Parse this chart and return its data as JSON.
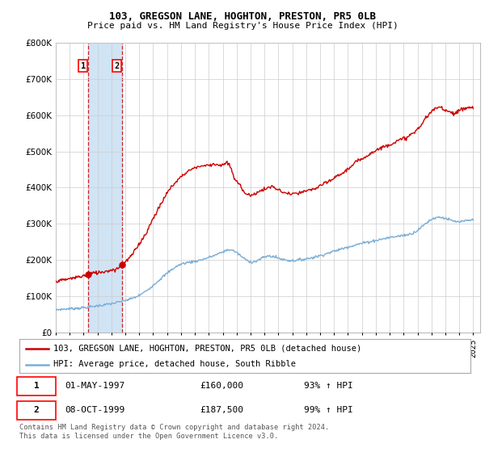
{
  "title": "103, GREGSON LANE, HOGHTON, PRESTON, PR5 0LB",
  "subtitle": "Price paid vs. HM Land Registry's House Price Index (HPI)",
  "ylim": [
    0,
    800000
  ],
  "xlim_start": 1995.0,
  "xlim_end": 2025.5,
  "sale1": {
    "date_num": 1997.33,
    "price": 160000,
    "label": "1",
    "date_str": "01-MAY-1997",
    "pct": "93% ↑ HPI"
  },
  "sale2": {
    "date_num": 1999.77,
    "price": 187500,
    "label": "2",
    "date_str": "08-OCT-1999",
    "pct": "99% ↑ HPI"
  },
  "vline_color": "#cc0000",
  "hpi_color": "#7aaed6",
  "property_color": "#cc0000",
  "shade_color": "#d0e4f5",
  "legend_property": "103, GREGSON LANE, HOGHTON, PRESTON, PR5 0LB (detached house)",
  "legend_hpi": "HPI: Average price, detached house, South Ribble",
  "footer": "Contains HM Land Registry data © Crown copyright and database right 2024.\nThis data is licensed under the Open Government Licence v3.0.",
  "background_color": "#ffffff",
  "grid_color": "#cccccc",
  "hpi_keypoints": [
    [
      1995.0,
      62000
    ],
    [
      1996.0,
      65000
    ],
    [
      1997.0,
      68000
    ],
    [
      1998.0,
      73000
    ],
    [
      1999.0,
      79000
    ],
    [
      2000.0,
      88000
    ],
    [
      2001.0,
      102000
    ],
    [
      2002.0,
      130000
    ],
    [
      2003.0,
      163000
    ],
    [
      2004.0,
      188000
    ],
    [
      2005.0,
      196000
    ],
    [
      2006.0,
      207000
    ],
    [
      2007.0,
      222000
    ],
    [
      2007.5,
      228000
    ],
    [
      2008.0,
      220000
    ],
    [
      2008.5,
      205000
    ],
    [
      2009.0,
      195000
    ],
    [
      2009.5,
      198000
    ],
    [
      2010.0,
      208000
    ],
    [
      2010.5,
      210000
    ],
    [
      2011.0,
      205000
    ],
    [
      2011.5,
      200000
    ],
    [
      2012.0,
      198000
    ],
    [
      2012.5,
      200000
    ],
    [
      2013.0,
      203000
    ],
    [
      2013.5,
      207000
    ],
    [
      2014.0,
      212000
    ],
    [
      2014.5,
      218000
    ],
    [
      2015.0,
      224000
    ],
    [
      2015.5,
      230000
    ],
    [
      2016.0,
      236000
    ],
    [
      2016.5,
      241000
    ],
    [
      2017.0,
      246000
    ],
    [
      2017.5,
      250000
    ],
    [
      2018.0,
      254000
    ],
    [
      2018.5,
      258000
    ],
    [
      2019.0,
      262000
    ],
    [
      2019.5,
      265000
    ],
    [
      2020.0,
      268000
    ],
    [
      2020.5,
      272000
    ],
    [
      2021.0,
      282000
    ],
    [
      2021.5,
      298000
    ],
    [
      2022.0,
      312000
    ],
    [
      2022.5,
      318000
    ],
    [
      2023.0,
      315000
    ],
    [
      2023.5,
      308000
    ],
    [
      2024.0,
      305000
    ],
    [
      2024.5,
      308000
    ],
    [
      2025.0,
      310000
    ]
  ],
  "prop_keypoints": [
    [
      1995.0,
      142000
    ],
    [
      1995.5,
      144000
    ],
    [
      1996.0,
      148000
    ],
    [
      1996.5,
      152000
    ],
    [
      1997.0,
      156000
    ],
    [
      1997.33,
      160000
    ],
    [
      1997.5,
      162000
    ],
    [
      1998.0,
      165000
    ],
    [
      1998.5,
      168000
    ],
    [
      1999.0,
      172000
    ],
    [
      1999.5,
      178000
    ],
    [
      1999.77,
      187500
    ],
    [
      2000.0,
      195000
    ],
    [
      2000.5,
      215000
    ],
    [
      2001.0,
      245000
    ],
    [
      2001.5,
      275000
    ],
    [
      2002.0,
      315000
    ],
    [
      2002.5,
      350000
    ],
    [
      2003.0,
      385000
    ],
    [
      2003.5,
      410000
    ],
    [
      2004.0,
      430000
    ],
    [
      2004.5,
      445000
    ],
    [
      2005.0,
      455000
    ],
    [
      2005.5,
      460000
    ],
    [
      2006.0,
      462000
    ],
    [
      2006.5,
      465000
    ],
    [
      2007.0,
      462000
    ],
    [
      2007.3,
      468000
    ],
    [
      2007.5,
      460000
    ],
    [
      2007.8,
      430000
    ],
    [
      2008.0,
      415000
    ],
    [
      2008.3,
      405000
    ],
    [
      2008.5,
      390000
    ],
    [
      2008.8,
      382000
    ],
    [
      2009.0,
      378000
    ],
    [
      2009.3,
      382000
    ],
    [
      2009.5,
      388000
    ],
    [
      2009.8,
      392000
    ],
    [
      2010.0,
      395000
    ],
    [
      2010.3,
      400000
    ],
    [
      2010.5,
      402000
    ],
    [
      2010.8,
      398000
    ],
    [
      2011.0,
      393000
    ],
    [
      2011.3,
      388000
    ],
    [
      2011.5,
      385000
    ],
    [
      2011.8,
      383000
    ],
    [
      2012.0,
      382000
    ],
    [
      2012.3,
      383000
    ],
    [
      2012.5,
      385000
    ],
    [
      2012.8,
      388000
    ],
    [
      2013.0,
      390000
    ],
    [
      2013.3,
      393000
    ],
    [
      2013.5,
      396000
    ],
    [
      2013.8,
      400000
    ],
    [
      2014.0,
      405000
    ],
    [
      2014.3,
      410000
    ],
    [
      2014.5,
      415000
    ],
    [
      2014.8,
      420000
    ],
    [
      2015.0,
      427000
    ],
    [
      2015.3,
      433000
    ],
    [
      2015.5,
      438000
    ],
    [
      2015.8,
      445000
    ],
    [
      2016.0,
      452000
    ],
    [
      2016.3,
      460000
    ],
    [
      2016.5,
      468000
    ],
    [
      2016.8,
      475000
    ],
    [
      2017.0,
      480000
    ],
    [
      2017.3,
      487000
    ],
    [
      2017.5,
      492000
    ],
    [
      2017.8,
      498000
    ],
    [
      2018.0,
      503000
    ],
    [
      2018.3,
      508000
    ],
    [
      2018.5,
      512000
    ],
    [
      2018.8,
      516000
    ],
    [
      2019.0,
      520000
    ],
    [
      2019.3,
      524000
    ],
    [
      2019.5,
      528000
    ],
    [
      2019.8,
      532000
    ],
    [
      2020.0,
      536000
    ],
    [
      2020.3,
      540000
    ],
    [
      2020.5,
      546000
    ],
    [
      2020.8,
      553000
    ],
    [
      2021.0,
      562000
    ],
    [
      2021.3,
      575000
    ],
    [
      2021.5,
      588000
    ],
    [
      2021.8,
      600000
    ],
    [
      2022.0,
      610000
    ],
    [
      2022.3,
      618000
    ],
    [
      2022.5,
      622000
    ],
    [
      2022.8,
      620000
    ],
    [
      2023.0,
      615000
    ],
    [
      2023.3,
      610000
    ],
    [
      2023.5,
      607000
    ],
    [
      2023.8,
      608000
    ],
    [
      2024.0,
      612000
    ],
    [
      2024.3,
      618000
    ],
    [
      2024.5,
      620000
    ],
    [
      2024.8,
      622000
    ],
    [
      2025.0,
      618000
    ]
  ]
}
